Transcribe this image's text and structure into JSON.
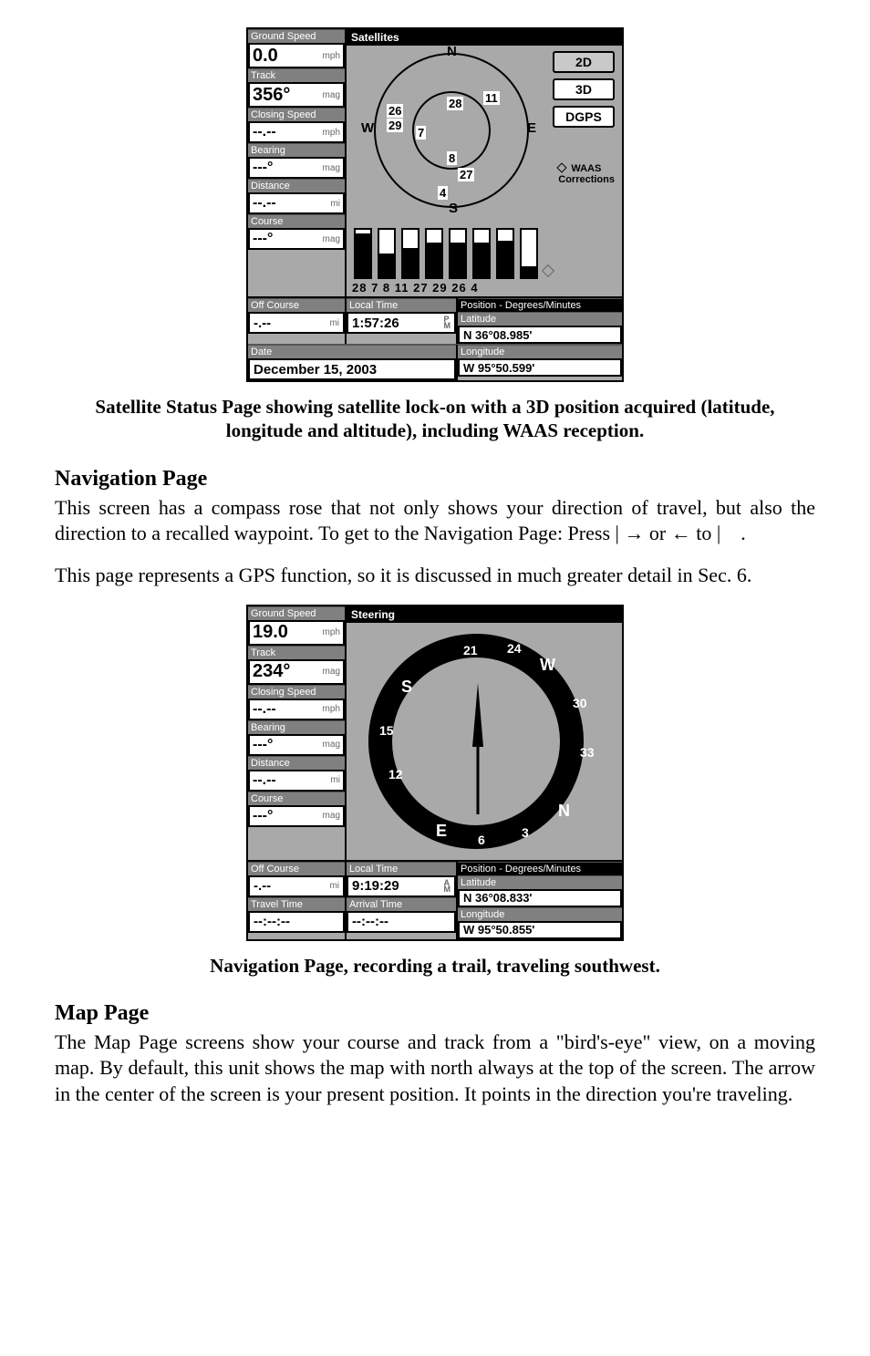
{
  "fig1": {
    "side": [
      {
        "label": "Ground Speed",
        "value": "0.0",
        "unit": "mph",
        "tall": true
      },
      {
        "label": "Track",
        "value": "356°",
        "unit": "mag",
        "tall": true
      },
      {
        "label": "Closing Speed",
        "value": "--.--",
        "unit": "mph"
      },
      {
        "label": "Bearing",
        "value": "---°",
        "unit": "mag"
      },
      {
        "label": "Distance",
        "value": "--.--",
        "unit": "mi"
      },
      {
        "label": "Course",
        "value": "---°",
        "unit": "mag"
      }
    ],
    "main_header": "Satellites",
    "buttons": {
      "b1": "2D",
      "b2": "3D",
      "b3": "DGPS"
    },
    "compass_letters": {
      "n": "N",
      "s": "S",
      "w": "W",
      "e": "E"
    },
    "waas_line1": "WAAS",
    "waas_line2": "Corrections",
    "sky_sats": [
      "26",
      "29",
      "7",
      "28",
      "11",
      "8",
      "27",
      "4"
    ],
    "bar_values": [
      50,
      28,
      34,
      40,
      40,
      40,
      42,
      14
    ],
    "bar_labels": "28  7   8  11 27 29 26 4",
    "bottom": {
      "off_course_label": "Off Course",
      "off_course_value": "-.--",
      "off_course_unit": "mi",
      "local_time_label": "Local Time",
      "local_time_value": "1:57:26",
      "local_time_ampm": "P\nM",
      "position_label": "Position - Degrees/Minutes",
      "lat_label": "Latitude",
      "lat_value": "N   36°08.985'",
      "lon_label": "Longitude",
      "lon_value": "W   95°50.599'",
      "date_label": "Date",
      "date_value": "December 15, 2003"
    }
  },
  "caption1": "Satellite Status Page showing satellite lock-on with a 3D position acquired (latitude, longitude and altitude), including WAAS reception.",
  "heading1": "Navigation Page",
  "para1a": "This screen has a compass rose that not only shows your direction of travel, but also the direction to a recalled waypoint. To get to the Navigation Page: Press ",
  "para1b": " → or ← to ",
  "para2": "This page represents a GPS function, so it is discussed in much greater detail in Sec. 6.",
  "fig2": {
    "side": [
      {
        "label": "Ground Speed",
        "value": "19.0",
        "unit": "mph",
        "tall": true
      },
      {
        "label": "Track",
        "value": "234°",
        "unit": "mag",
        "tall": true
      },
      {
        "label": "Closing Speed",
        "value": "--.--",
        "unit": "mph"
      },
      {
        "label": "Bearing",
        "value": "---°",
        "unit": "mag"
      },
      {
        "label": "Distance",
        "value": "--.--",
        "unit": "mi"
      },
      {
        "label": "Course",
        "value": "---°",
        "unit": "mag"
      }
    ],
    "main_header": "Steering",
    "ring_letters": {
      "N": "N",
      "S": "S",
      "E": "E",
      "W": "W"
    },
    "ring_nums": [
      "21",
      "24",
      "30",
      "33",
      "3",
      "6",
      "12",
      "15"
    ],
    "bottom": {
      "off_course_label": "Off Course",
      "off_course_value": "-.--",
      "off_course_unit": "mi",
      "local_time_label": "Local Time",
      "local_time_value": "9:19:29",
      "local_time_ampm": "A\nM",
      "travel_time_label": "Travel Time",
      "travel_time_value": "--:--:--",
      "arrival_time_label": "Arrival Time",
      "arrival_time_value": "--:--:--",
      "position_label": "Position - Degrees/Minutes",
      "lat_label": "Latitude",
      "lat_value": "N   36°08.833'",
      "lon_label": "Longitude",
      "lon_value": "W   95°50.855'"
    }
  },
  "caption2": "Navigation Page, recording a trail, traveling southwest.",
  "heading2": "Map Page",
  "para3": "The Map Page screens show your course and track from a \"bird's-eye\" view, on a moving map. By default, this unit shows the map with north always at the top of the screen. The arrow in the center of the screen is your present position. It points in the direction you're traveling."
}
